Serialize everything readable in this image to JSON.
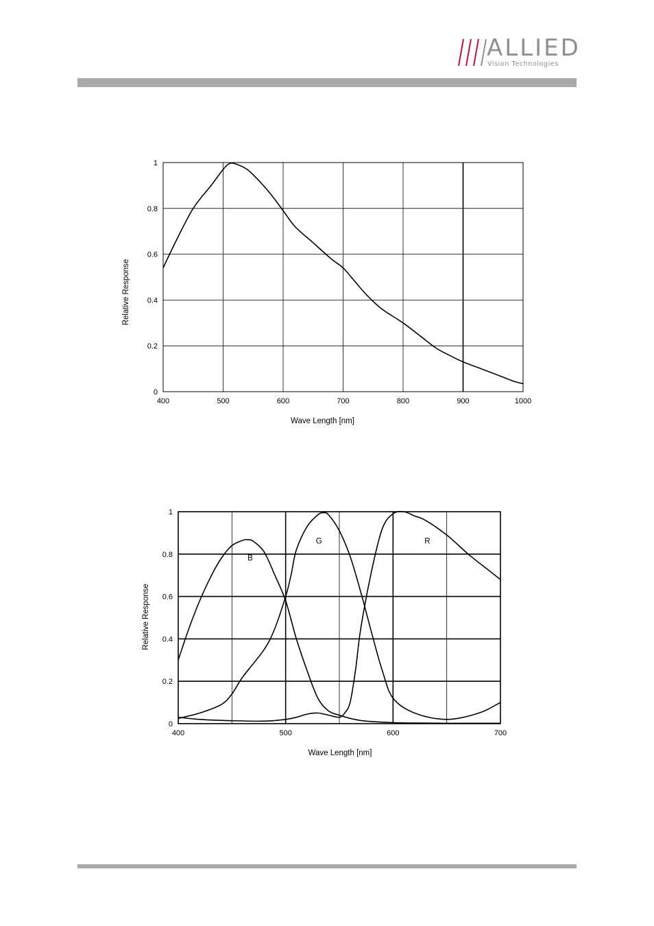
{
  "header": {
    "brand": "ALLIED",
    "tagline": "Vision Technologies",
    "accent_color": "#c8102e",
    "bar_color": "#a9a9a9"
  },
  "chart_data": [
    {
      "type": "line",
      "title": "",
      "xlabel": "Wave Length [nm]",
      "ylabel": "Relative Response",
      "xlim": [
        400,
        1000
      ],
      "ylim": [
        0,
        1
      ],
      "xticks": [
        400,
        500,
        600,
        700,
        800,
        900,
        1000
      ],
      "yticks": [
        0,
        0.2,
        0.4,
        0.6,
        0.8,
        1
      ],
      "xtick_labels": [
        "400",
        "500",
        "600",
        "700",
        "800",
        "900",
        "1000"
      ],
      "ytick_labels": [
        "0",
        "0.2",
        "0.4",
        "0.6",
        "0.8",
        "1"
      ],
      "grid": true,
      "series": [
        {
          "x": [
            400,
            420,
            450,
            480,
            500,
            510,
            520,
            540,
            560,
            580,
            600,
            620,
            650,
            680,
            700,
            720,
            740,
            765,
            800,
            830,
            855,
            880,
            900,
            930,
            960,
            985,
            1000
          ],
          "y": [
            0.54,
            0.65,
            0.8,
            0.9,
            0.97,
            0.995,
            0.995,
            0.97,
            0.92,
            0.86,
            0.79,
            0.72,
            0.65,
            0.58,
            0.54,
            0.48,
            0.42,
            0.36,
            0.3,
            0.24,
            0.19,
            0.155,
            0.13,
            0.1,
            0.07,
            0.045,
            0.035
          ]
        }
      ]
    },
    {
      "type": "line",
      "title": "",
      "xlabel": "Wave Length [nm]",
      "ylabel": "Relative Response",
      "xlim": [
        400,
        700
      ],
      "ylim": [
        0,
        1
      ],
      "xticks": [
        400,
        450,
        500,
        550,
        600,
        650,
        700
      ],
      "yticks": [
        0,
        0.2,
        0.4,
        0.6,
        0.8,
        1
      ],
      "xtick_labels": [
        "400",
        "500",
        "600",
        "700"
      ],
      "xtick_label_values": [
        400,
        500,
        600,
        700
      ],
      "ytick_labels": [
        "0",
        "0.2",
        "0.4",
        "0.6",
        "0.8",
        "1"
      ],
      "grid": true,
      "annotations": [
        {
          "text": "B",
          "x": 467,
          "y": 0.77
        },
        {
          "text": "G",
          "x": 531,
          "y": 0.85
        },
        {
          "text": "R",
          "x": 632,
          "y": 0.85
        }
      ],
      "series": [
        {
          "name": "B",
          "x": [
            400,
            410,
            420,
            430,
            440,
            450,
            460,
            465,
            470,
            480,
            490,
            500,
            510,
            520,
            530,
            540,
            550,
            560,
            570,
            580,
            600,
            620,
            650,
            700
          ],
          "y": [
            0.3,
            0.45,
            0.58,
            0.69,
            0.78,
            0.84,
            0.865,
            0.868,
            0.86,
            0.81,
            0.7,
            0.58,
            0.4,
            0.25,
            0.12,
            0.06,
            0.04,
            0.025,
            0.015,
            0.01,
            0.005,
            0.003,
            0.002,
            0.002
          ]
        },
        {
          "name": "G",
          "x": [
            400,
            420,
            440,
            450,
            460,
            480,
            490,
            500,
            505,
            510,
            520,
            530,
            535,
            540,
            550,
            560,
            570,
            580,
            590,
            600,
            620,
            650,
            680,
            700
          ],
          "y": [
            0.025,
            0.05,
            0.09,
            0.14,
            0.22,
            0.35,
            0.45,
            0.6,
            0.7,
            0.82,
            0.93,
            0.985,
            0.995,
            0.985,
            0.91,
            0.79,
            0.62,
            0.43,
            0.25,
            0.12,
            0.05,
            0.02,
            0.05,
            0.1
          ]
        },
        {
          "name": "R",
          "x": [
            400,
            420,
            450,
            480,
            500,
            510,
            520,
            530,
            540,
            550,
            555,
            560,
            565,
            570,
            580,
            590,
            600,
            610,
            620,
            630,
            650,
            670,
            690,
            700
          ],
          "y": [
            0.03,
            0.02,
            0.014,
            0.012,
            0.02,
            0.03,
            0.045,
            0.05,
            0.04,
            0.03,
            0.05,
            0.1,
            0.25,
            0.45,
            0.72,
            0.92,
            0.99,
            1.0,
            0.98,
            0.96,
            0.89,
            0.8,
            0.72,
            0.68
          ]
        }
      ]
    }
  ]
}
